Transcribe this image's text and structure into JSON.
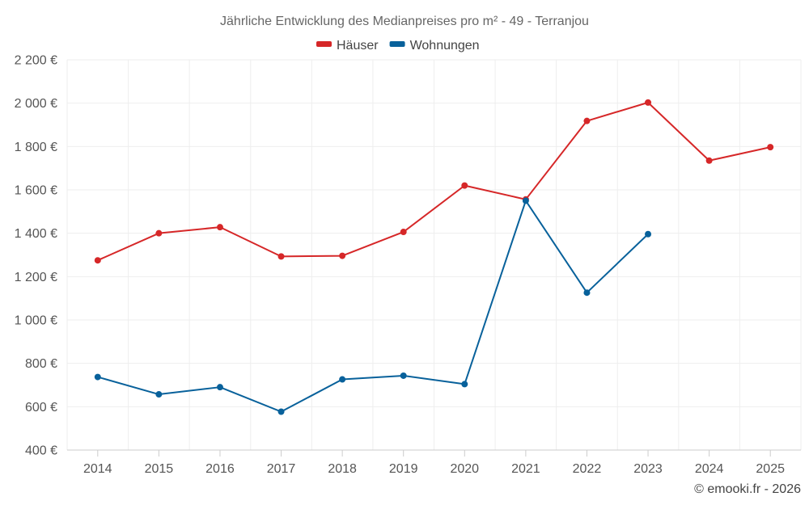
{
  "chart_data": {
    "type": "line",
    "title": "Jährliche Entwicklung des Medianpreises pro m² - 49 - Terranjou",
    "x": [
      "2014",
      "2015",
      "2016",
      "2017",
      "2018",
      "2019",
      "2020",
      "2021",
      "2022",
      "2023",
      "2024",
      "2025"
    ],
    "ylim": [
      400,
      2200
    ],
    "yticks": [
      400,
      600,
      800,
      1000,
      1200,
      1400,
      1600,
      1800,
      2000,
      2200
    ],
    "ytick_labels": [
      "400 €",
      "600 €",
      "800 €",
      "1 000 €",
      "1 200 €",
      "1 400 €",
      "1 600 €",
      "1 800 €",
      "2 000 €",
      "2 200 €"
    ],
    "grid": true,
    "legend_position": "top-center",
    "series": [
      {
        "name": "Häuser",
        "color": "#d62728",
        "values": [
          1275,
          1400,
          1428,
          1293,
          1296,
          1406,
          1620,
          1556,
          1918,
          2003,
          1735,
          1797
        ]
      },
      {
        "name": "Wohnungen",
        "color": "#08619b",
        "values": [
          737,
          657,
          690,
          577,
          726,
          743,
          704,
          1550,
          1126,
          1396,
          null,
          null
        ]
      }
    ]
  },
  "credit": "© emooki.fr - 2026"
}
